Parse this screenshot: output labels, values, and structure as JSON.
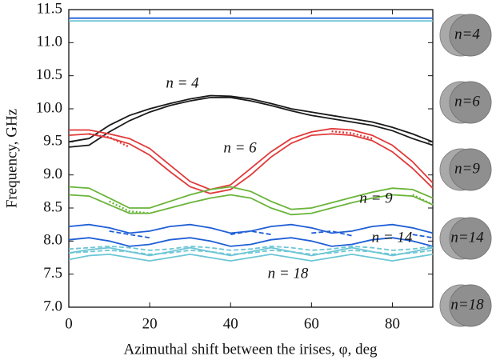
{
  "chart_data": {
    "type": "line",
    "x_label": "Azimuthal shift between the irises, φ, deg",
    "y_label": "Frequency, GHz",
    "x": [
      0,
      5,
      10,
      15,
      20,
      25,
      30,
      35,
      40,
      45,
      50,
      55,
      60,
      65,
      70,
      75,
      80,
      85,
      90
    ],
    "xlim": [
      0,
      90
    ],
    "xticks": [
      0,
      20,
      40,
      60,
      80
    ],
    "ylim": [
      7.0,
      11.5
    ],
    "yticks": [
      {
        "value": 7.0,
        "label": "7.0"
      },
      7.5,
      {
        "value": 8.0,
        "label": "8.0"
      },
      8.5,
      {
        "value": 9.0,
        "label": "9.0"
      },
      9.5,
      {
        "value": 10.0,
        "label": "10.0"
      },
      10.5,
      {
        "value": 11.0,
        "label": "11.0"
      },
      11.5
    ],
    "annotations": [
      "n = 4",
      "n = 6",
      "n = 9",
      "n = 14",
      "n = 18"
    ],
    "panel_labels": [
      "n=4",
      "n=6",
      "n=9",
      "n=14",
      "n=18"
    ],
    "series": [
      {
        "color": "#1a1a1a",
        "style": "solid",
        "values": [
          9.5,
          9.55,
          9.75,
          9.9,
          10.0,
          10.08,
          10.15,
          10.2,
          10.19,
          10.15,
          10.08,
          10.0,
          9.95,
          9.9,
          9.85,
          9.8,
          9.72,
          9.62,
          9.5
        ]
      },
      {
        "color": "#1a1a1a",
        "style": "solid",
        "values": [
          9.42,
          9.45,
          9.65,
          9.82,
          9.95,
          10.05,
          10.12,
          10.17,
          10.17,
          10.12,
          10.05,
          9.97,
          9.9,
          9.85,
          9.8,
          9.75,
          9.67,
          9.55,
          9.45
        ]
      },
      {
        "color": "#e03a3a",
        "style": "solid",
        "values": [
          9.68,
          9.68,
          9.62,
          9.55,
          9.4,
          9.15,
          8.9,
          8.78,
          8.85,
          9.1,
          9.35,
          9.55,
          9.65,
          9.7,
          9.68,
          9.6,
          9.45,
          9.2,
          8.88
        ]
      },
      {
        "color": "#e03a3a",
        "style": "solid",
        "values": [
          9.6,
          9.62,
          9.56,
          9.47,
          9.3,
          9.05,
          8.82,
          8.72,
          8.78,
          9.0,
          9.27,
          9.48,
          9.6,
          9.62,
          9.6,
          9.52,
          9.35,
          9.1,
          8.8
        ]
      },
      {
        "color": "#e03a3a",
        "style": "dotted",
        "values": [
          null,
          9.62,
          9.57,
          9.42,
          null,
          null,
          null,
          null,
          null,
          null,
          null,
          null,
          null,
          9.66,
          9.63,
          9.55,
          null,
          null,
          null
        ]
      },
      {
        "color": "#6ab43a",
        "style": "solid",
        "values": [
          8.82,
          8.8,
          8.65,
          8.5,
          8.5,
          8.6,
          8.7,
          8.78,
          8.82,
          8.75,
          8.6,
          8.48,
          8.5,
          8.58,
          8.66,
          8.74,
          8.8,
          8.78,
          8.65
        ]
      },
      {
        "color": "#6ab43a",
        "style": "solid",
        "values": [
          8.7,
          8.68,
          8.55,
          8.42,
          8.42,
          8.5,
          8.58,
          8.65,
          8.7,
          8.65,
          8.5,
          8.4,
          8.42,
          8.5,
          8.58,
          8.65,
          8.7,
          8.68,
          8.55
        ]
      },
      {
        "color": "#6ab43a",
        "style": "dotted",
        "values": [
          null,
          null,
          8.6,
          8.45,
          8.42,
          null,
          null,
          null,
          null,
          null,
          null,
          null,
          null,
          null,
          null,
          null,
          null,
          8.7,
          8.55
        ]
      },
      {
        "color": "#1f5fd6",
        "style": "solid",
        "values": [
          8.22,
          8.25,
          8.2,
          8.12,
          8.15,
          8.22,
          8.25,
          8.2,
          8.12,
          8.15,
          8.22,
          8.25,
          8.2,
          8.12,
          8.15,
          8.22,
          8.25,
          8.2,
          8.12
        ]
      },
      {
        "color": "#1f5fd6",
        "style": "solid",
        "values": [
          8.02,
          8.05,
          8.0,
          7.92,
          7.95,
          8.02,
          8.05,
          8.0,
          7.92,
          7.95,
          8.02,
          8.05,
          8.0,
          7.92,
          7.95,
          8.02,
          8.05,
          8.0,
          7.92
        ]
      },
      {
        "color": "#1f5fd6",
        "style": "dashed",
        "values": [
          null,
          null,
          8.15,
          8.1,
          8.05,
          null,
          null,
          null,
          8.1,
          8.15,
          8.1,
          null,
          8.12,
          8.15,
          8.08,
          null,
          null,
          8.1,
          8.05
        ]
      },
      {
        "color": "#6cc6d6",
        "style": "solid",
        "values": [
          7.82,
          7.87,
          7.9,
          7.84,
          7.78,
          7.84,
          7.9,
          7.84,
          7.78,
          7.84,
          7.9,
          7.84,
          7.78,
          7.84,
          7.9,
          7.84,
          7.78,
          7.84,
          7.9
        ]
      },
      {
        "color": "#6cc6d6",
        "style": "solid",
        "values": [
          7.72,
          7.78,
          7.8,
          7.75,
          7.7,
          7.75,
          7.8,
          7.75,
          7.7,
          7.75,
          7.8,
          7.75,
          7.7,
          7.75,
          7.8,
          7.75,
          7.7,
          7.75,
          7.8
        ]
      },
      {
        "color": "#6cc6d6",
        "style": "dashed",
        "values": [
          7.88,
          7.9,
          7.92,
          7.9,
          7.86,
          7.88,
          7.92,
          7.9,
          7.86,
          7.88,
          7.92,
          7.9,
          7.86,
          7.88,
          7.92,
          7.9,
          7.86,
          7.88,
          7.92
        ]
      },
      {
        "color": "#6cc6d6",
        "style": "dashed",
        "values": [
          7.82,
          7.84,
          7.86,
          7.84,
          7.8,
          7.82,
          7.86,
          7.84,
          7.8,
          7.82,
          7.86,
          7.84,
          7.8,
          7.82,
          7.86,
          7.84,
          7.8,
          7.82,
          7.86
        ]
      },
      {
        "color": "#1f5fd6",
        "style": "solid",
        "values": [
          11.37,
          11.37,
          11.37,
          11.37,
          11.37,
          11.37,
          11.37,
          11.37,
          11.37,
          11.37,
          11.37,
          11.37,
          11.37,
          11.37,
          11.37,
          11.37,
          11.37,
          11.37,
          11.37
        ]
      },
      {
        "color": "#6cc6d6",
        "style": "solid",
        "values": [
          11.33,
          11.33,
          11.33,
          11.33,
          11.33,
          11.33,
          11.33,
          11.33,
          11.33,
          11.33,
          11.33,
          11.33,
          11.33,
          11.33,
          11.33,
          11.33,
          11.33,
          11.33,
          11.33
        ]
      }
    ]
  }
}
